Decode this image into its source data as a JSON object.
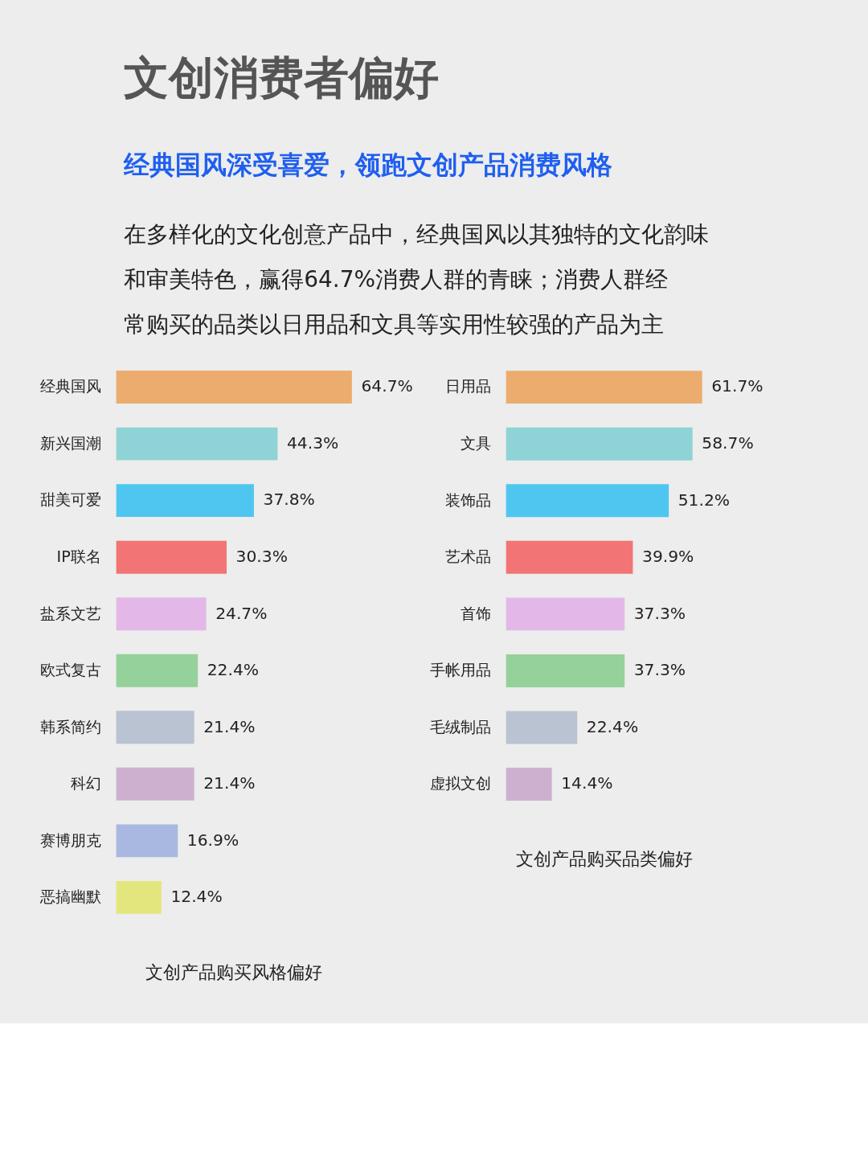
{
  "chart_data": [
    {
      "type": "bar",
      "orientation": "horizontal",
      "title": "文创产品购买风格偏好",
      "annotations": [
        "文创消费者偏好",
        "经典国风深受喜爱，领跑文创产品消费风格",
        "在多样化的文化创意产品中，经典国风以其独特的文化韵味和审美特色，赢得64.7%消费人群的青睐；消费人群经常购买的品类以日用品和文具等实用性较强的产品为主"
      ],
      "categories": [
        "经典国风",
        "新兴国潮",
        "甜美可爱",
        "IP联名",
        "盐系文艺",
        "欧式复古",
        "韩系简约",
        "科幻",
        "赛博朋克",
        "恶搞幽默"
      ],
      "values": [
        64.7,
        44.3,
        37.8,
        30.3,
        24.7,
        22.4,
        21.4,
        21.4,
        16.9,
        12.4
      ],
      "colors": [
        "#ecac6e",
        "#8fd3d6",
        "#4fc6f0",
        "#f27474",
        "#e3b8e8",
        "#95d19a",
        "#b9c3d1",
        "#cdb0d0",
        "#a9b8e0",
        "#e3e67c"
      ],
      "value_labels": [
        "64.7%",
        "44.3%",
        "37.8%",
        "30.3%",
        "24.7%",
        "22.4%",
        "21.4%",
        "21.4%",
        "16.9%",
        "12.4%"
      ]
    },
    {
      "type": "bar",
      "orientation": "horizontal",
      "title": "文创产品购买品类偏好",
      "categories": [
        "日用品",
        "文具",
        "装饰品",
        "艺术品",
        "首饰",
        "手帐用品",
        "毛绒制品",
        "虚拟文创"
      ],
      "values": [
        61.7,
        58.7,
        51.2,
        39.9,
        37.3,
        37.3,
        22.4,
        14.4
      ],
      "colors": [
        "#ecac6e",
        "#8fd3d6",
        "#4fc6f0",
        "#f27474",
        "#e3b8e8",
        "#95d19a",
        "#b9c3d1",
        "#cdb0d0"
      ],
      "value_labels": [
        "61.7%",
        "58.7%",
        "51.2%",
        "39.9%",
        "37.3%",
        "37.3%",
        "22.4%",
        "14.4%"
      ]
    }
  ]
}
